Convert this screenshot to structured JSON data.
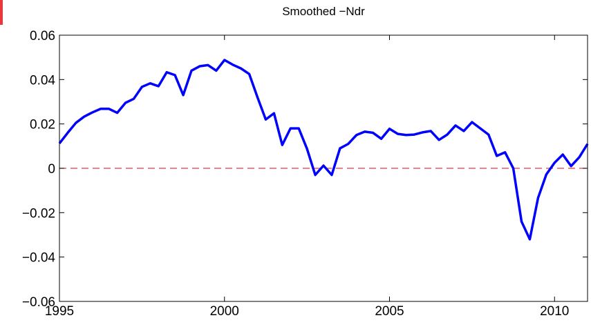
{
  "chart_data": {
    "type": "line",
    "title": "Smoothed −Ndr",
    "x": [
      1995,
      1995.25,
      1995.5,
      1995.75,
      1996,
      1996.25,
      1996.5,
      1996.75,
      1997,
      1997.25,
      1997.5,
      1997.75,
      1998,
      1998.25,
      1998.5,
      1998.75,
      1999,
      1999.25,
      1999.5,
      1999.75,
      2000,
      2000.25,
      2000.5,
      2000.75,
      2001,
      2001.25,
      2001.5,
      2001.75,
      2002,
      2002.25,
      2002.5,
      2002.75,
      2003,
      2003.25,
      2003.5,
      2003.75,
      2004,
      2004.25,
      2004.5,
      2004.75,
      2005,
      2005.25,
      2005.5,
      2005.75,
      2006,
      2006.25,
      2006.5,
      2006.75,
      2007,
      2007.25,
      2007.5,
      2007.75,
      2008,
      2008.25,
      2008.5,
      2008.75,
      2009,
      2009.25,
      2009.5,
      2009.75,
      2010,
      2010.25,
      2010.5,
      2010.75,
      2011
    ],
    "series": [
      {
        "color": "#0000ff",
        "values": [
          0.0112,
          0.016,
          0.0205,
          0.0233,
          0.0252,
          0.0268,
          0.0268,
          0.025,
          0.0295,
          0.0313,
          0.0367,
          0.0383,
          0.037,
          0.0433,
          0.042,
          0.033,
          0.044,
          0.046,
          0.0465,
          0.044,
          0.0488,
          0.0467,
          0.045,
          0.0425,
          0.032,
          0.022,
          0.0248,
          0.0105,
          0.018,
          0.018,
          0.0088,
          -0.003,
          0.0012,
          -0.003,
          0.009,
          0.011,
          0.015,
          0.0165,
          0.016,
          0.0133,
          0.0178,
          0.0155,
          0.015,
          0.0152,
          0.0162,
          0.0168,
          0.0128,
          0.0152,
          0.0193,
          0.0168,
          0.0208,
          0.018,
          0.0152,
          0.0056,
          0.0072,
          0,
          -0.024,
          -0.032,
          -0.0134,
          -0.0028,
          0.0025,
          0.0062,
          0.001,
          0.005,
          0.011
        ]
      }
    ],
    "hline": {
      "value": 0,
      "color": "#e8383d",
      "style": "dashed"
    },
    "xlim": [
      1995,
      2011
    ],
    "xticks": [
      1995,
      2000,
      2005,
      2010
    ],
    "ylim": [
      -0.06,
      0.06
    ],
    "yticks": [
      {
        "value": -0.06,
        "label": "−0.06"
      },
      {
        "value": -0.04,
        "label": "−0.04"
      },
      {
        "value": -0.02,
        "label": "−0.02"
      },
      0,
      0.02,
      0.04,
      0.06
    ],
    "grid": false
  }
}
